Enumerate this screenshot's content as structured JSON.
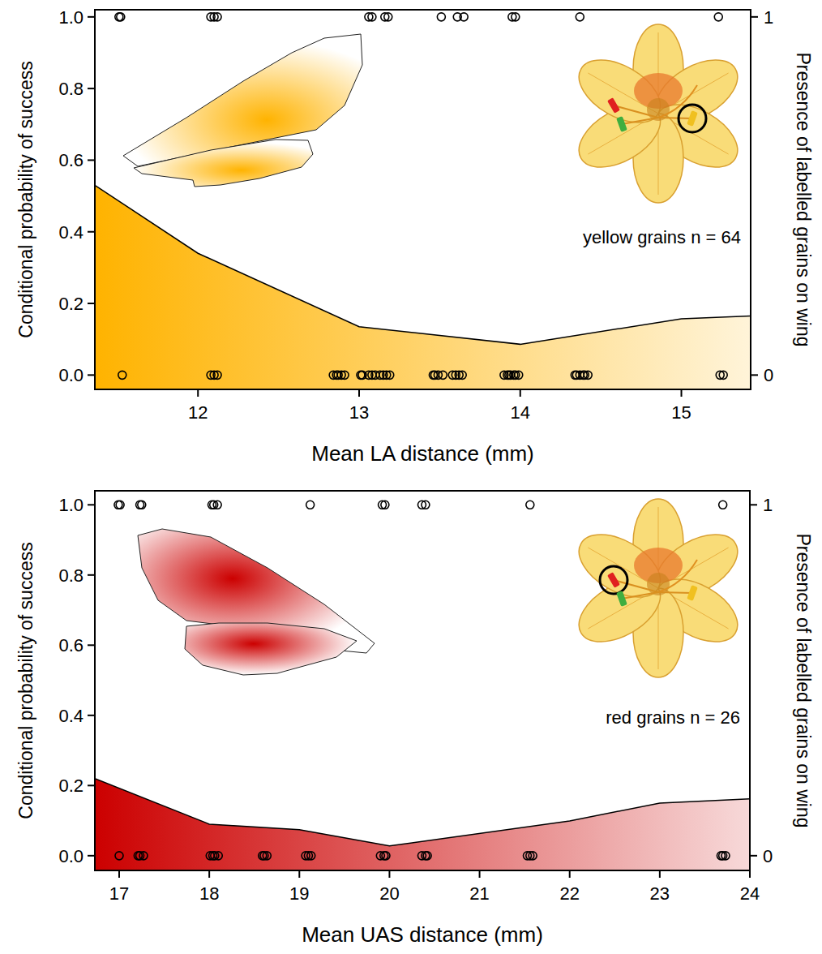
{
  "chart_data": [
    {
      "type": "area",
      "xlabel": "Mean LA distance (mm)",
      "ylabel": "Conditional probability of success",
      "y2label": "Presence of labelled grains on wing",
      "annotation": "yellow grains n = 64",
      "xlim": [
        11.36,
        15.43
      ],
      "xticks": [
        12,
        13,
        14,
        15
      ],
      "ylim": [
        -0.04,
        1.02
      ],
      "yticks": [
        {
          "value": 0,
          "label": "0.0"
        },
        {
          "value": 0.2,
          "label": "0.2"
        },
        {
          "value": 0.4,
          "label": "0.4"
        },
        {
          "value": 0.6,
          "label": "0.6"
        },
        {
          "value": 0.8,
          "label": "0.8"
        },
        {
          "value": 1,
          "label": "1.0"
        }
      ],
      "y2lim": [
        -0.04,
        1.02
      ],
      "y2ticks": [
        0,
        1
      ],
      "series": [
        {
          "type": "area",
          "color": "#ffb300",
          "x": [
            11.36,
            12,
            13,
            14,
            15,
            15.43
          ],
          "values": [
            0.53,
            0.34,
            0.135,
            0.086,
            0.157,
            0.165
          ]
        },
        {
          "type": "scatter",
          "axis": "y2",
          "marker": "circle",
          "color": "#000000",
          "x": [
            11.51,
            11.52,
            12.08,
            12.1,
            12.12,
            13.06,
            13.08,
            13.16,
            13.18,
            13.51,
            13.61,
            13.65,
            13.95,
            13.97,
            14.37,
            15.23,
            11.53,
            12.08,
            12.1,
            12.12,
            12.84,
            12.86,
            12.87,
            12.89,
            12.91,
            13.01,
            13.02,
            13.06,
            13.08,
            13.1,
            13.13,
            13.15,
            13.17,
            13.19,
            13.46,
            13.47,
            13.49,
            13.52,
            13.58,
            13.6,
            13.62,
            13.64,
            13.9,
            13.92,
            13.93,
            13.94,
            13.96,
            13.97,
            13.99,
            14.34,
            14.35,
            14.37,
            14.39,
            14.4,
            14.42,
            15.24,
            15.26
          ],
          "values": [
            1,
            1,
            1,
            1,
            1,
            1,
            1,
            1,
            1,
            1,
            1,
            1,
            1,
            1,
            1,
            1,
            0,
            0,
            0,
            0,
            0,
            0,
            0,
            0,
            0,
            0,
            0,
            0,
            0,
            0,
            0,
            0,
            0,
            0,
            0,
            0,
            0,
            0,
            0,
            0,
            0,
            0,
            0,
            0,
            0,
            0,
            0,
            0,
            0,
            0,
            0,
            0,
            0,
            0,
            0,
            0,
            0
          ]
        }
      ]
    },
    {
      "type": "area",
      "xlabel": "Mean UAS distance (mm)",
      "ylabel": "Conditional probability of success",
      "y2label": "Presence of labelled grains on wing",
      "annotation": "red grains n = 26",
      "xlim": [
        16.73,
        24.0
      ],
      "xticks": [
        17,
        18,
        19,
        20,
        21,
        22,
        23,
        24
      ],
      "ylim": [
        -0.042,
        1.04
      ],
      "yticks": [
        {
          "value": 0,
          "label": "0.0"
        },
        {
          "value": 0.2,
          "label": "0.2"
        },
        {
          "value": 0.4,
          "label": "0.4"
        },
        {
          "value": 0.6,
          "label": "0.6"
        },
        {
          "value": 0.8,
          "label": "0.8"
        },
        {
          "value": 1,
          "label": "1.0"
        }
      ],
      "y2lim": [
        -0.042,
        1.04
      ],
      "y2ticks": [
        0,
        1
      ],
      "series": [
        {
          "type": "area",
          "color": "#cc0000",
          "x": [
            16.73,
            18,
            19,
            20,
            22,
            23,
            24
          ],
          "values": [
            0.22,
            0.09,
            0.074,
            0.028,
            0.099,
            0.15,
            0.162
          ]
        },
        {
          "type": "scatter",
          "axis": "y2",
          "marker": "circle",
          "color": "#000000",
          "x": [
            16.99,
            17.01,
            17.23,
            17.25,
            18.03,
            18.05,
            18.09,
            19.12,
            19.92,
            19.95,
            20.36,
            20.4,
            21.56,
            23.7,
            17.0,
            17.21,
            17.23,
            17.27,
            18.01,
            18.04,
            18.06,
            18.1,
            18.59,
            18.61,
            18.64,
            19.07,
            19.1,
            19.13,
            19.9,
            19.94,
            19.96,
            20.36,
            20.4,
            20.42,
            21.53,
            21.56,
            21.59,
            23.68,
            23.7,
            23.73
          ],
          "values": [
            1,
            1,
            1,
            1,
            1,
            1,
            1,
            1,
            1,
            1,
            1,
            1,
            1,
            1,
            0,
            0,
            0,
            0,
            0,
            0,
            0,
            0,
            0,
            0,
            0,
            0,
            0,
            0,
            0,
            0,
            0,
            0,
            0,
            0,
            0,
            0,
            0,
            0,
            0,
            0
          ]
        }
      ]
    }
  ]
}
